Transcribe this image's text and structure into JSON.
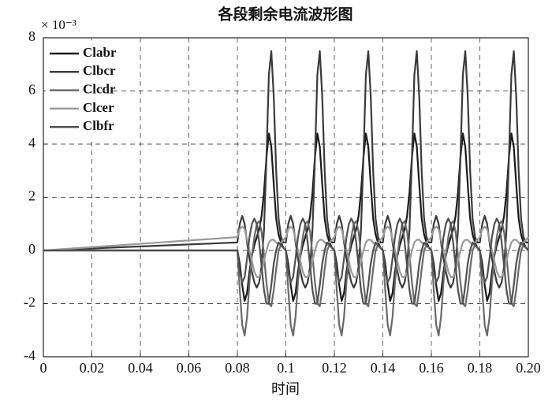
{
  "chart_data": {
    "type": "line",
    "title": "各段剩余电流波形图",
    "x_label": "时间",
    "y_multiplier": "× 10⁻³",
    "x": [
      0,
      0.08,
      0.081,
      0.082,
      0.083,
      0.084,
      0.085,
      0.086,
      0.087,
      0.088,
      0.089,
      0.09,
      0.091,
      0.092,
      0.093,
      0.094,
      0.095,
      0.096,
      0.097,
      0.098,
      0.099,
      0.1,
      0.101,
      0.102,
      0.103,
      0.104,
      0.105,
      0.106,
      0.107,
      0.108,
      0.109,
      0.11,
      0.111,
      0.112,
      0.113,
      0.114,
      0.115,
      0.116,
      0.117,
      0.118,
      0.119,
      0.12,
      0.121,
      0.122,
      0.123,
      0.124,
      0.125,
      0.126,
      0.127,
      0.128,
      0.129,
      0.13,
      0.131,
      0.132,
      0.133,
      0.134,
      0.135,
      0.136,
      0.137,
      0.138,
      0.139,
      0.14,
      0.141,
      0.142,
      0.143,
      0.144,
      0.145,
      0.146,
      0.147,
      0.148,
      0.149,
      0.15,
      0.151,
      0.152,
      0.153,
      0.154,
      0.155,
      0.156,
      0.157,
      0.158,
      0.159,
      0.16,
      0.161,
      0.162,
      0.163,
      0.164,
      0.165,
      0.166,
      0.167,
      0.168,
      0.169,
      0.17,
      0.171,
      0.172,
      0.173,
      0.174,
      0.175,
      0.176,
      0.177,
      0.178,
      0.179,
      0.18,
      0.181,
      0.182,
      0.183,
      0.184,
      0.185,
      0.186,
      0.187,
      0.188,
      0.189,
      0.19,
      0.191,
      0.192,
      0.193,
      0.194,
      0.195,
      0.196,
      0.197,
      0.198,
      0.199,
      0.2
    ],
    "series": [
      {
        "name": "Clabr",
        "color": "#1a1a1a",
        "values": [
          0,
          0,
          -0.5,
          -1.3,
          -1.9,
          -1.6,
          -0.8,
          -0.2,
          0.2,
          0.5,
          0.8,
          1.3,
          2.2,
          3.5,
          4.4,
          3.9,
          2.5,
          1.2,
          0.6,
          0.3,
          0.1,
          0,
          -0.5,
          -1.3,
          -1.9,
          -1.6,
          -0.8,
          -0.2,
          0.2,
          0.5,
          0.8,
          1.3,
          2.2,
          3.5,
          4.4,
          3.9,
          2.5,
          1.2,
          0.6,
          0.3,
          0.1,
          0,
          -0.5,
          -1.3,
          -1.9,
          -1.6,
          -0.8,
          -0.2,
          0.2,
          0.5,
          0.8,
          1.3,
          2.2,
          3.5,
          4.4,
          3.9,
          2.5,
          1.2,
          0.6,
          0.3,
          0.1,
          0,
          -0.5,
          -1.3,
          -1.9,
          -1.6,
          -0.8,
          -0.2,
          0.2,
          0.5,
          0.8,
          1.3,
          2.2,
          3.5,
          4.4,
          3.9,
          2.5,
          1.2,
          0.6,
          0.3,
          0.1,
          0,
          -0.5,
          -1.3,
          -1.9,
          -1.6,
          -0.8,
          -0.2,
          0.2,
          0.5,
          0.8,
          1.3,
          2.2,
          3.5,
          4.4,
          3.9,
          2.5,
          1.2,
          0.6,
          0.3,
          0.1,
          0,
          -0.5,
          -1.3,
          -1.9,
          -1.6,
          -0.8,
          -0.2,
          0.2,
          0.5,
          0.8,
          1.3,
          2.2,
          3.5,
          4.4,
          3.9,
          2.5,
          1.2,
          0.6,
          0.3,
          0.1,
          0
        ]
      },
      {
        "name": "Clbcr",
        "color": "#3a3a3a",
        "values": [
          0,
          0.3,
          1,
          1.3,
          1,
          0.3,
          -0.3,
          -0.8,
          -1.2,
          -1.4,
          -1.2,
          -0.6,
          0.8,
          3.5,
          6.6,
          7.5,
          5.8,
          3,
          1.2,
          0.5,
          0.3,
          0.3,
          1,
          1.3,
          1,
          0.3,
          -0.3,
          -0.8,
          -1.2,
          -1.4,
          -1.2,
          -0.6,
          0.8,
          3.5,
          6.6,
          7.5,
          5.8,
          3,
          1.2,
          0.5,
          0.3,
          0.3,
          1,
          1.3,
          1,
          0.3,
          -0.3,
          -0.8,
          -1.2,
          -1.4,
          -1.2,
          -0.6,
          0.8,
          3.5,
          6.6,
          7.5,
          5.8,
          3,
          1.2,
          0.5,
          0.3,
          0.3,
          1,
          1.3,
          1,
          0.3,
          -0.3,
          -0.8,
          -1.2,
          -1.4,
          -1.2,
          -0.6,
          0.8,
          3.5,
          6.6,
          7.5,
          5.8,
          3,
          1.2,
          0.5,
          0.3,
          0.3,
          1,
          1.3,
          1,
          0.3,
          -0.3,
          -0.8,
          -1.2,
          -1.4,
          -1.2,
          -0.6,
          0.8,
          3.5,
          6.6,
          7.5,
          5.8,
          3,
          1.2,
          0.5,
          0.3,
          0.3,
          1,
          1.3,
          1,
          0.3,
          -0.3,
          -0.8,
          -1.2,
          -1.4,
          -1.2,
          -0.6,
          0.8,
          3.5,
          6.6,
          7.5,
          5.8,
          3,
          1.2,
          0.5,
          0.3,
          0.3
        ]
      },
      {
        "name": "Clcdr",
        "color": "#6a6a6a",
        "values": [
          0,
          0,
          -1.5,
          -2.8,
          -3.2,
          -2.5,
          -1.2,
          -0.2,
          0.5,
          1,
          1.1,
          0.7,
          -0.2,
          -1.2,
          -2,
          -2.1,
          -1.5,
          -0.7,
          0,
          0.2,
          0.1,
          0,
          -1.5,
          -2.8,
          -3.2,
          -2.5,
          -1.2,
          -0.2,
          0.5,
          1,
          1.1,
          0.7,
          -0.2,
          -1.2,
          -2,
          -2.1,
          -1.5,
          -0.7,
          0,
          0.2,
          0.1,
          0,
          -1.5,
          -2.8,
          -3.2,
          -2.5,
          -1.2,
          -0.2,
          0.5,
          1,
          1.1,
          0.7,
          -0.2,
          -1.2,
          -2,
          -2.1,
          -1.5,
          -0.7,
          0,
          0.2,
          0.1,
          0,
          -1.5,
          -2.8,
          -3.2,
          -2.5,
          -1.2,
          -0.2,
          0.5,
          1,
          1.1,
          0.7,
          -0.2,
          -1.2,
          -2,
          -2.1,
          -1.5,
          -0.7,
          0,
          0.2,
          0.1,
          0,
          -1.5,
          -2.8,
          -3.2,
          -2.5,
          -1.2,
          -0.2,
          0.5,
          1,
          1.1,
          0.7,
          -0.2,
          -1.2,
          -2,
          -2.1,
          -1.5,
          -0.7,
          0,
          0.2,
          0.1,
          0,
          -1.5,
          -2.8,
          -3.2,
          -2.5,
          -1.2,
          -0.2,
          0.5,
          1,
          1.1,
          0.7,
          -0.2,
          -1.2,
          -2,
          -2.1,
          -1.5,
          -0.7,
          0,
          0.2,
          0.1,
          0
        ]
      },
      {
        "name": "Clcer",
        "color": "#9a9a9a",
        "values": [
          0,
          0.5,
          0.8,
          0.9,
          0.8,
          0.4,
          0,
          -0.4,
          -0.8,
          -1,
          -1,
          -0.8,
          -0.4,
          0,
          0.3,
          0.4,
          0.4,
          0.3,
          0.2,
          0.3,
          0.4,
          0.5,
          0.8,
          0.9,
          0.8,
          0.4,
          0,
          -0.4,
          -0.8,
          -1,
          -1,
          -0.8,
          -0.4,
          0,
          0.3,
          0.4,
          0.4,
          0.3,
          0.2,
          0.3,
          0.4,
          0.5,
          0.8,
          0.9,
          0.8,
          0.4,
          0,
          -0.4,
          -0.8,
          -1,
          -1,
          -0.8,
          -0.4,
          0,
          0.3,
          0.4,
          0.4,
          0.3,
          0.2,
          0.3,
          0.4,
          0.5,
          0.8,
          0.9,
          0.8,
          0.4,
          0,
          -0.4,
          -0.8,
          -1,
          -1,
          -0.8,
          -0.4,
          0,
          0.3,
          0.4,
          0.4,
          0.3,
          0.2,
          0.3,
          0.4,
          0.5,
          0.8,
          0.9,
          0.8,
          0.4,
          0,
          -0.4,
          -0.8,
          -1,
          -1,
          -0.8,
          -0.4,
          0,
          0.3,
          0.4,
          0.4,
          0.3,
          0.2,
          0.3,
          0.4,
          0.5,
          0.8,
          0.9,
          0.8,
          0.4,
          0,
          -0.4,
          -0.8,
          -1,
          -1,
          -0.8,
          -0.4,
          0,
          0.3,
          0.4,
          0.4,
          0.3,
          0.2,
          0.3,
          0.4,
          0.5
        ]
      },
      {
        "name": "Clbfr",
        "color": "#505050",
        "values": [
          0,
          0,
          -0.8,
          -1.2,
          -1,
          -0.3,
          0.5,
          1,
          1.2,
          1,
          0.3,
          -0.6,
          -1.5,
          -2,
          -2,
          -1.3,
          -0.5,
          0,
          0.3,
          0.2,
          0.1,
          0,
          -0.8,
          -1.2,
          -1,
          -0.3,
          0.5,
          1,
          1.2,
          1,
          0.3,
          -0.6,
          -1.5,
          -2,
          -2,
          -1.3,
          -0.5,
          0,
          0.3,
          0.2,
          0.1,
          0,
          -0.8,
          -1.2,
          -1,
          -0.3,
          0.5,
          1,
          1.2,
          1,
          0.3,
          -0.6,
          -1.5,
          -2,
          -2,
          -1.3,
          -0.5,
          0,
          0.3,
          0.2,
          0.1,
          0,
          -0.8,
          -1.2,
          -1,
          -0.3,
          0.5,
          1,
          1.2,
          1,
          0.3,
          -0.6,
          -1.5,
          -2,
          -2,
          -1.3,
          -0.5,
          0,
          0.3,
          0.2,
          0.1,
          0,
          -0.8,
          -1.2,
          -1,
          -0.3,
          0.5,
          1,
          1.2,
          1,
          0.3,
          -0.6,
          -1.5,
          -2,
          -2,
          -1.3,
          -0.5,
          0,
          0.3,
          0.2,
          0.1,
          0,
          -0.8,
          -1.2,
          -1,
          -0.3,
          0.5,
          1,
          1.2,
          1,
          0.3,
          -0.6,
          -1.5,
          -2,
          -2,
          -1.3,
          -0.5,
          0,
          0.3,
          0.2,
          0.1,
          0
        ]
      }
    ],
    "xlim": [
      0,
      0.2
    ],
    "xticks": [
      0,
      0.02,
      0.04,
      0.06,
      0.08,
      0.1,
      0.12,
      0.14,
      0.16,
      0.18,
      {
        "value": 0.2,
        "label": "0.20"
      }
    ],
    "ylim": [
      -4,
      8
    ],
    "yticks": [
      -4,
      -2,
      0,
      2,
      4,
      6,
      8
    ],
    "grid": true,
    "legend": "upper left"
  }
}
